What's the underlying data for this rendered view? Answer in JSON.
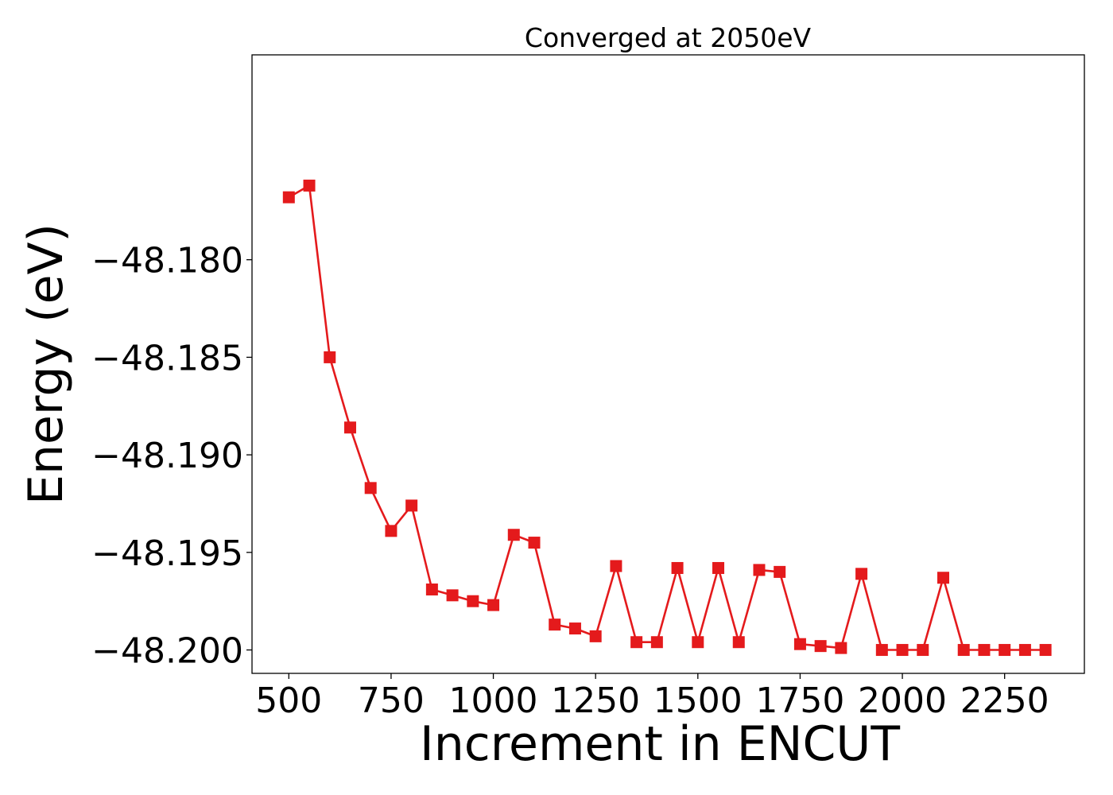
{
  "chart_data": {
    "type": "line",
    "title": "Converged at 2050eV",
    "xlabel": "Increment in ENCUT",
    "ylabel": "Energy (eV)",
    "xlim": [
      410,
      2445
    ],
    "ylim": [
      -48.2012,
      -48.1695
    ],
    "xticks": [
      500,
      750,
      1000,
      1250,
      1500,
      1750,
      2000,
      2250
    ],
    "xtick_labels": [
      "500",
      "750",
      "1000",
      "1250",
      "1500",
      "1750",
      "2000",
      "2250"
    ],
    "yticks": [
      -48.18,
      -48.185,
      -48.19,
      -48.195,
      -48.2
    ],
    "ytick_labels": [
      "−48.180",
      "−48.185",
      "−48.190",
      "−48.195",
      "−48.200"
    ],
    "grid": false,
    "series": [
      {
        "marker": "square",
        "color": "#e41a1c",
        "x": [
          500,
          550,
          600,
          650,
          700,
          750,
          800,
          850,
          900,
          950,
          1000,
          1050,
          1100,
          1150,
          1200,
          1250,
          1300,
          1350,
          1400,
          1450,
          1500,
          1550,
          1600,
          1650,
          1700,
          1750,
          1800,
          1850,
          1900,
          1950,
          2000,
          2050,
          2100,
          2150,
          2200,
          2250,
          2300,
          2350
        ],
        "y": [
          -48.1768,
          -48.1762,
          -48.185,
          -48.1886,
          -48.1917,
          -48.1939,
          -48.1926,
          -48.1969,
          -48.1972,
          -48.1975,
          -48.1977,
          -48.1941,
          -48.1945,
          -48.1987,
          -48.1989,
          -48.1993,
          -48.1957,
          -48.1996,
          -48.1996,
          -48.1958,
          -48.1996,
          -48.1958,
          -48.1996,
          -48.1959,
          -48.196,
          -48.1997,
          -48.1998,
          -48.1999,
          -48.1961,
          -48.2,
          -48.2,
          -48.2,
          -48.1963,
          -48.2,
          -48.2,
          -48.2,
          -48.2,
          -48.2
        ]
      }
    ]
  }
}
